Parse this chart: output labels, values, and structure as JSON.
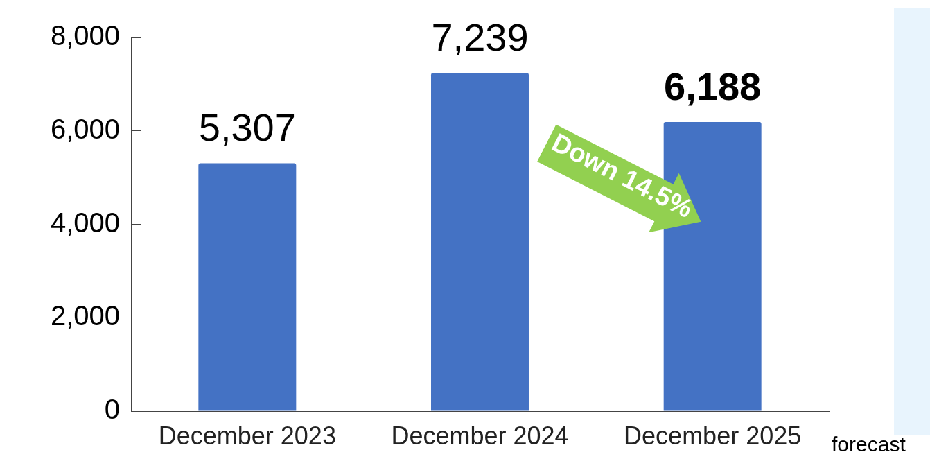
{
  "chart_data": {
    "type": "bar",
    "categories": [
      "December 2023",
      "December 2024",
      "December 2025"
    ],
    "values": [
      5307,
      7239,
      6188
    ],
    "color": "#4472c4",
    "value_labels": [
      "5,307",
      "7,239",
      "6,188"
    ],
    "ylim": [
      0,
      8000
    ],
    "yticks": [
      {
        "value": 0,
        "label": "0"
      },
      {
        "value": 2000,
        "label": "2,000"
      },
      {
        "value": 4000,
        "label": "4,000"
      },
      {
        "value": 6000,
        "label": "6,000"
      },
      {
        "value": 8000,
        "label": "8,000"
      }
    ],
    "grid": false,
    "legend": false,
    "annotations": [
      "Down 14.5%",
      "forecast"
    ]
  }
}
